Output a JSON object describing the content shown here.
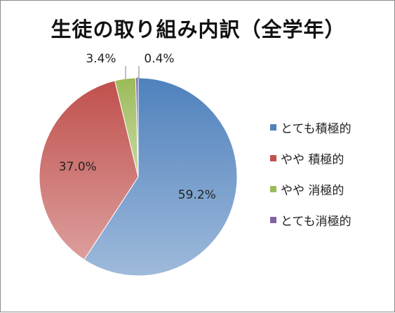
{
  "chart_data": {
    "type": "pie",
    "title": "生徒の取り組み内訳（全学年）",
    "slices": [
      {
        "label": "とても積極的",
        "value": 59.2,
        "value_label": "59.2%",
        "color": "#4f81bd"
      },
      {
        "label": "やや 積極的",
        "value": 37.0,
        "value_label": "37.0%",
        "color": "#c0504d"
      },
      {
        "label": "やや 消極的",
        "value": 3.4,
        "value_label": "3.4%",
        "color": "#9bbb59"
      },
      {
        "label": "とても消極的",
        "value": 0.4,
        "value_label": "0.4%",
        "color": "#8064a2"
      }
    ],
    "start": "12 o'clock",
    "direction": "clockwise",
    "legend_position": "right"
  }
}
